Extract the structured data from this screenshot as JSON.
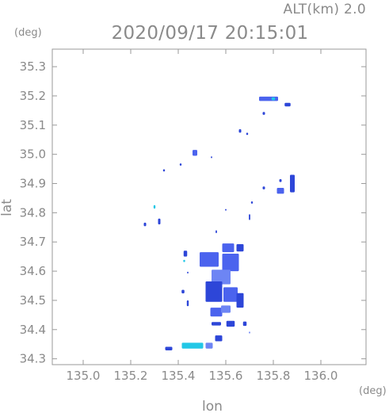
{
  "header": {
    "altitude_label": "ALT(km)  2.0",
    "datetime": "2020/09/17 20:15:01"
  },
  "chart_data": {
    "type": "heatmap",
    "title": "2020/09/17 20:15:01",
    "xlabel": "lon",
    "ylabel": "lat",
    "xunit": "(deg)",
    "yunit": "(deg)",
    "xlim": [
      134.87,
      136.19
    ],
    "ylim": [
      34.28,
      35.36
    ],
    "xticks": [
      135.0,
      135.2,
      135.4,
      135.6,
      135.8,
      136.0
    ],
    "xtick_labels": [
      "135.0",
      "135.2",
      "135.4",
      "135.6",
      "135.8",
      "136.0"
    ],
    "yticks": [
      34.3,
      34.4,
      34.5,
      34.6,
      34.7,
      34.8,
      34.9,
      35.0,
      35.1,
      35.2,
      35.3
    ],
    "ytick_labels": [
      "34.3",
      "34.4",
      "34.5",
      "34.6",
      "34.7",
      "34.8",
      "34.9",
      "35.0",
      "35.1",
      "35.2",
      "35.3"
    ],
    "grid": false,
    "colors": {
      "frame": "#9a9a9a",
      "echo_strong": "#2d46d8",
      "echo_medium": "#4b63ee",
      "echo_weak": "#6d85f4",
      "echo_light": "#22c7e6"
    },
    "echo_cells": [
      {
        "lon": 135.78,
        "lat": 35.19,
        "w": 0.08,
        "h": 0.015,
        "level": "medium"
      },
      {
        "lon": 135.86,
        "lat": 35.17,
        "w": 0.025,
        "h": 0.012,
        "level": "strong"
      },
      {
        "lon": 135.8,
        "lat": 35.19,
        "w": 0.015,
        "h": 0.01,
        "level": "light"
      },
      {
        "lon": 135.76,
        "lat": 35.14,
        "w": 0.01,
        "h": 0.01,
        "level": "strong"
      },
      {
        "lon": 135.66,
        "lat": 35.08,
        "w": 0.01,
        "h": 0.012,
        "level": "strong"
      },
      {
        "lon": 135.69,
        "lat": 35.07,
        "w": 0.008,
        "h": 0.008,
        "level": "strong"
      },
      {
        "lon": 135.47,
        "lat": 35.005,
        "w": 0.02,
        "h": 0.02,
        "level": "medium"
      },
      {
        "lon": 135.54,
        "lat": 34.99,
        "w": 0.006,
        "h": 0.006,
        "level": "strong"
      },
      {
        "lon": 135.41,
        "lat": 34.965,
        "w": 0.008,
        "h": 0.008,
        "level": "strong"
      },
      {
        "lon": 135.34,
        "lat": 34.945,
        "w": 0.008,
        "h": 0.008,
        "level": "strong"
      },
      {
        "lon": 135.88,
        "lat": 34.9,
        "w": 0.02,
        "h": 0.06,
        "level": "strong"
      },
      {
        "lon": 135.83,
        "lat": 34.875,
        "w": 0.03,
        "h": 0.02,
        "level": "medium"
      },
      {
        "lon": 135.76,
        "lat": 34.885,
        "w": 0.01,
        "h": 0.01,
        "level": "strong"
      },
      {
        "lon": 135.83,
        "lat": 34.91,
        "w": 0.01,
        "h": 0.01,
        "level": "strong"
      },
      {
        "lon": 135.71,
        "lat": 34.835,
        "w": 0.008,
        "h": 0.008,
        "level": "strong"
      },
      {
        "lon": 135.7,
        "lat": 34.785,
        "w": 0.006,
        "h": 0.02,
        "level": "strong"
      },
      {
        "lon": 135.6,
        "lat": 34.81,
        "w": 0.006,
        "h": 0.006,
        "level": "strong"
      },
      {
        "lon": 135.56,
        "lat": 34.735,
        "w": 0.006,
        "h": 0.01,
        "level": "strong"
      },
      {
        "lon": 135.3,
        "lat": 34.82,
        "w": 0.008,
        "h": 0.012,
        "level": "light"
      },
      {
        "lon": 135.32,
        "lat": 34.77,
        "w": 0.01,
        "h": 0.02,
        "level": "strong"
      },
      {
        "lon": 135.26,
        "lat": 34.76,
        "w": 0.01,
        "h": 0.012,
        "level": "strong"
      },
      {
        "lon": 135.61,
        "lat": 34.68,
        "w": 0.05,
        "h": 0.03,
        "level": "medium"
      },
      {
        "lon": 135.66,
        "lat": 34.68,
        "w": 0.03,
        "h": 0.025,
        "level": "strong"
      },
      {
        "lon": 135.53,
        "lat": 34.64,
        "w": 0.08,
        "h": 0.05,
        "level": "medium"
      },
      {
        "lon": 135.62,
        "lat": 34.63,
        "w": 0.07,
        "h": 0.06,
        "level": "medium"
      },
      {
        "lon": 135.58,
        "lat": 34.58,
        "w": 0.08,
        "h": 0.05,
        "level": "weak"
      },
      {
        "lon": 135.55,
        "lat": 34.53,
        "w": 0.07,
        "h": 0.07,
        "level": "strong"
      },
      {
        "lon": 135.62,
        "lat": 34.52,
        "w": 0.06,
        "h": 0.05,
        "level": "medium"
      },
      {
        "lon": 135.66,
        "lat": 34.5,
        "w": 0.03,
        "h": 0.05,
        "level": "strong"
      },
      {
        "lon": 135.56,
        "lat": 34.46,
        "w": 0.05,
        "h": 0.03,
        "level": "medium"
      },
      {
        "lon": 135.6,
        "lat": 34.47,
        "w": 0.04,
        "h": 0.025,
        "level": "weak"
      },
      {
        "lon": 135.62,
        "lat": 34.42,
        "w": 0.035,
        "h": 0.02,
        "level": "strong"
      },
      {
        "lon": 135.56,
        "lat": 34.42,
        "w": 0.04,
        "h": 0.012,
        "level": "strong"
      },
      {
        "lon": 135.68,
        "lat": 34.42,
        "w": 0.015,
        "h": 0.015,
        "level": "strong"
      },
      {
        "lon": 135.43,
        "lat": 34.66,
        "w": 0.015,
        "h": 0.02,
        "level": "strong"
      },
      {
        "lon": 135.425,
        "lat": 34.635,
        "w": 0.008,
        "h": 0.008,
        "level": "light"
      },
      {
        "lon": 135.42,
        "lat": 34.53,
        "w": 0.012,
        "h": 0.012,
        "level": "strong"
      },
      {
        "lon": 135.44,
        "lat": 34.49,
        "w": 0.008,
        "h": 0.02,
        "level": "strong"
      },
      {
        "lon": 135.44,
        "lat": 34.595,
        "w": 0.006,
        "h": 0.006,
        "level": "strong"
      },
      {
        "lon": 135.57,
        "lat": 34.37,
        "w": 0.03,
        "h": 0.02,
        "level": "strong"
      },
      {
        "lon": 135.46,
        "lat": 34.345,
        "w": 0.09,
        "h": 0.02,
        "level": "light"
      },
      {
        "lon": 135.53,
        "lat": 34.345,
        "w": 0.03,
        "h": 0.02,
        "level": "weak"
      },
      {
        "lon": 135.36,
        "lat": 34.335,
        "w": 0.03,
        "h": 0.012,
        "level": "strong"
      },
      {
        "lon": 135.7,
        "lat": 34.39,
        "w": 0.006,
        "h": 0.006,
        "level": "weak"
      }
    ]
  }
}
